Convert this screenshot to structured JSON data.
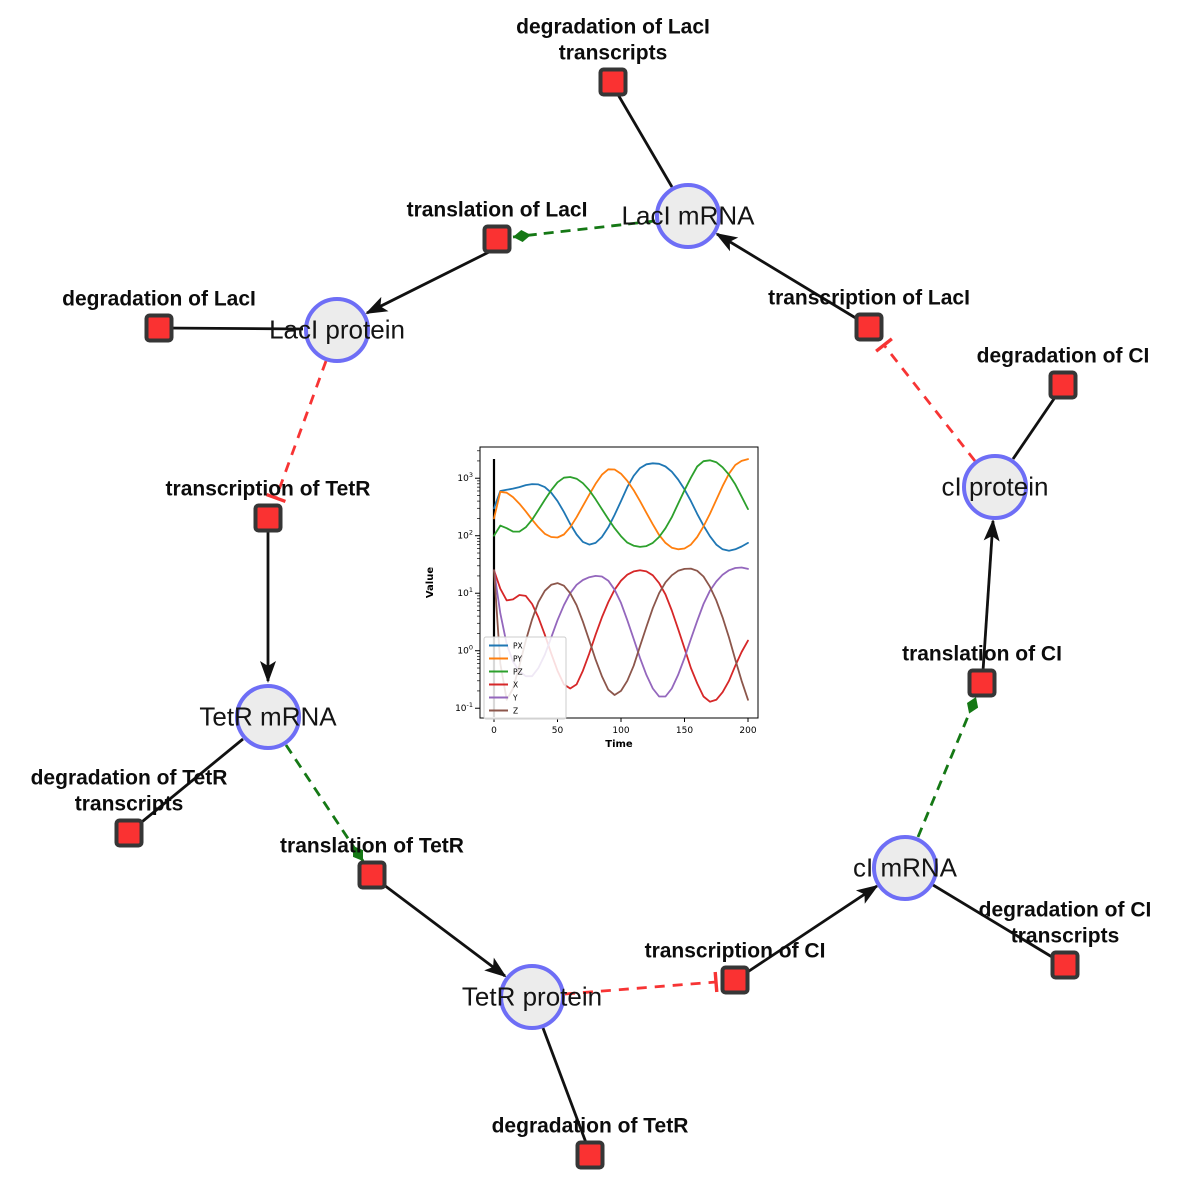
{
  "diagram": {
    "species": [
      {
        "id": "laci_mrna",
        "label": "LacI mRNA"
      },
      {
        "id": "laci_protein",
        "label": "LacI protein"
      },
      {
        "id": "tetr_mrna",
        "label": "TetR mRNA"
      },
      {
        "id": "tetr_protein",
        "label": "TetR protein"
      },
      {
        "id": "ci_mrna",
        "label": "cI mRNA"
      },
      {
        "id": "ci_protein",
        "label": "cI protein"
      }
    ],
    "reactions": [
      {
        "id": "deg_laci_tx",
        "label": "degradation of LacI transcripts"
      },
      {
        "id": "translation_laci",
        "label": "translation of LacI"
      },
      {
        "id": "deg_laci",
        "label": "degradation of LacI"
      },
      {
        "id": "transcription_tetr",
        "label": "transcription of TetR"
      },
      {
        "id": "deg_tetr_tx",
        "label": "degradation of TetR transcripts"
      },
      {
        "id": "translation_tetr",
        "label": "translation of TetR"
      },
      {
        "id": "deg_tetr",
        "label": "degradation of TetR"
      },
      {
        "id": "transcription_ci",
        "label": "transcription of CI"
      },
      {
        "id": "deg_ci_tx",
        "label": "degradation of CI transcripts"
      },
      {
        "id": "translation_ci",
        "label": "translation of CI"
      },
      {
        "id": "deg_ci",
        "label": "degradation of CI"
      },
      {
        "id": "transcription_laci",
        "label": "transcription of LacI"
      }
    ],
    "edges": [
      {
        "source": "laci_mrna",
        "target": "deg_laci_tx",
        "type": "reactant"
      },
      {
        "source": "laci_mrna",
        "target": "translation_laci",
        "type": "modifier"
      },
      {
        "source": "translation_laci",
        "target": "laci_protein",
        "type": "product"
      },
      {
        "source": "laci_protein",
        "target": "deg_laci",
        "type": "reactant"
      },
      {
        "source": "laci_protein",
        "target": "transcription_tetr",
        "type": "inhibition"
      },
      {
        "source": "transcription_tetr",
        "target": "tetr_mrna",
        "type": "product"
      },
      {
        "source": "tetr_mrna",
        "target": "deg_tetr_tx",
        "type": "reactant"
      },
      {
        "source": "tetr_mrna",
        "target": "translation_tetr",
        "type": "modifier"
      },
      {
        "source": "translation_tetr",
        "target": "tetr_protein",
        "type": "product"
      },
      {
        "source": "tetr_protein",
        "target": "deg_tetr",
        "type": "reactant"
      },
      {
        "source": "tetr_protein",
        "target": "transcription_ci",
        "type": "inhibition"
      },
      {
        "source": "transcription_ci",
        "target": "ci_mrna",
        "type": "product"
      },
      {
        "source": "ci_mrna",
        "target": "deg_ci_tx",
        "type": "reactant"
      },
      {
        "source": "ci_mrna",
        "target": "translation_ci",
        "type": "modifier"
      },
      {
        "source": "translation_ci",
        "target": "ci_protein",
        "type": "product"
      },
      {
        "source": "ci_protein",
        "target": "deg_ci",
        "type": "reactant"
      },
      {
        "source": "ci_protein",
        "target": "transcription_laci",
        "type": "inhibition"
      },
      {
        "source": "transcription_laci",
        "target": "laci_mrna",
        "type": "product"
      }
    ],
    "colors": {
      "species_fill": "#ececec",
      "species_border": "#6e6ef6",
      "reaction_fill": "#fa3232",
      "reaction_border": "#363636",
      "edge_black": "#111111",
      "edge_modifier_green": "#157815",
      "edge_inhibition_red": "#f73434"
    }
  },
  "chart_data": {
    "type": "line",
    "title": "",
    "xlabel": "Time",
    "ylabel": "Value",
    "yscale": "log",
    "xticks": [
      0,
      50,
      100,
      150,
      200
    ],
    "ytick_exponents": [
      -1,
      0,
      1,
      2,
      3
    ],
    "xlim": [
      -10,
      209
    ],
    "ylim": [
      0.068,
      3470
    ],
    "grid": false,
    "legend_position": "lower left",
    "annotations": [
      {
        "type": "vline",
        "x": 0,
        "color": "#000000"
      }
    ],
    "x": [
      0,
      5,
      10,
      15,
      20,
      25,
      30,
      35,
      40,
      45,
      50,
      55,
      60,
      65,
      70,
      75,
      80,
      85,
      90,
      95,
      100,
      105,
      110,
      115,
      120,
      125,
      130,
      135,
      140,
      145,
      150,
      155,
      160,
      165,
      170,
      175,
      180,
      185,
      190,
      195,
      200
    ],
    "series": [
      {
        "name": "PX",
        "color": "#1f77b4",
        "values": [
          300,
          600,
          630,
          660,
          700,
          760,
          790,
          780,
          700,
          560,
          400,
          260,
          160,
          105,
          78,
          70,
          75,
          95,
          140,
          230,
          400,
          700,
          1100,
          1500,
          1750,
          1820,
          1780,
          1600,
          1300,
          950,
          640,
          400,
          240,
          150,
          98,
          70,
          58,
          55,
          58,
          65,
          75
        ]
      },
      {
        "name": "PY",
        "color": "#ff7f0e",
        "values": [
          200,
          580,
          560,
          470,
          360,
          265,
          190,
          140,
          108,
          95,
          93,
          105,
          140,
          210,
          330,
          520,
          800,
          1150,
          1430,
          1420,
          1200,
          900,
          620,
          400,
          250,
          158,
          103,
          75,
          62,
          58,
          60,
          70,
          95,
          145,
          240,
          420,
          730,
          1200,
          1700,
          2000,
          2150
        ]
      },
      {
        "name": "PZ",
        "color": "#2ca02c",
        "values": [
          100,
          150,
          135,
          118,
          118,
          140,
          190,
          280,
          420,
          620,
          850,
          1020,
          1050,
          980,
          820,
          620,
          430,
          290,
          195,
          135,
          98,
          76,
          67,
          64,
          66,
          75,
          95,
          135,
          210,
          360,
          620,
          1020,
          1600,
          1980,
          2050,
          1900,
          1550,
          1150,
          780,
          480,
          290
        ]
      },
      {
        "name": "X",
        "color": "#d62728",
        "values": [
          25,
          12,
          7.5,
          7.8,
          9.3,
          9,
          6.5,
          3.8,
          1.9,
          0.9,
          0.45,
          0.26,
          0.22,
          0.26,
          0.45,
          0.9,
          1.9,
          3.8,
          7,
          11.5,
          16.5,
          21,
          24,
          25,
          24,
          20.5,
          15,
          9.5,
          5,
          2.4,
          1.1,
          0.5,
          0.27,
          0.16,
          0.13,
          0.14,
          0.19,
          0.3,
          0.55,
          0.95,
          1.5
        ]
      },
      {
        "name": "Y",
        "color": "#9467bd",
        "values": [
          25,
          4.5,
          1.3,
          0.65,
          0.44,
          0.36,
          0.36,
          0.5,
          0.85,
          1.7,
          3.4,
          6.2,
          10,
          14,
          17,
          19,
          20,
          19.5,
          16.5,
          11.5,
          6.8,
          3.4,
          1.6,
          0.75,
          0.38,
          0.22,
          0.16,
          0.16,
          0.22,
          0.38,
          0.75,
          1.6,
          3.3,
          6.5,
          11,
          16,
          21,
          25,
          27.5,
          28,
          26.5
        ]
      },
      {
        "name": "Z",
        "color": "#8c564b",
        "values": [
          25,
          0.6,
          0.14,
          0.22,
          0.55,
          1.5,
          3.5,
          7,
          11,
          14,
          15,
          13.5,
          10,
          6.2,
          3.2,
          1.5,
          0.7,
          0.36,
          0.21,
          0.17,
          0.2,
          0.3,
          0.55,
          1.2,
          2.6,
          5.5,
          10,
          15.5,
          20.5,
          24.5,
          26.5,
          26.8,
          24.5,
          19.5,
          13,
          7.5,
          3.8,
          1.7,
          0.7,
          0.3,
          0.14
        ]
      }
    ]
  }
}
